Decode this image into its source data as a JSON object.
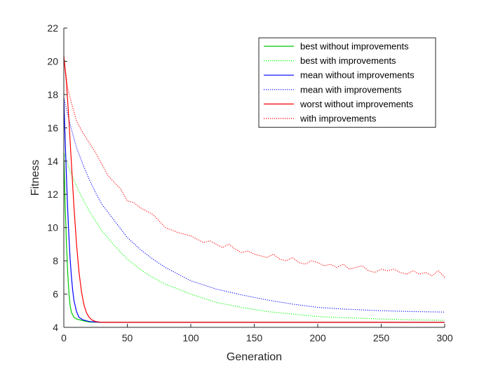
{
  "chart_data": {
    "type": "line",
    "title": "",
    "xlabel": "Generation",
    "ylabel": "Fitness",
    "xlim": [
      0,
      300
    ],
    "ylim": [
      4,
      22
    ],
    "xticks": [
      0,
      50,
      100,
      150,
      200,
      250,
      300
    ],
    "yticks": [
      4,
      6,
      8,
      10,
      12,
      14,
      16,
      18,
      20,
      22
    ],
    "grid": false,
    "legend_position": "top-right",
    "series": [
      {
        "name": "best without improvements",
        "color": "#00c800",
        "style": "solid",
        "points": [
          [
            0,
            14.5
          ],
          [
            1,
            11.5
          ],
          [
            2,
            9.2
          ],
          [
            3,
            7.4
          ],
          [
            4,
            6.1
          ],
          [
            5,
            5.3
          ],
          [
            6,
            4.9
          ],
          [
            8,
            4.6
          ],
          [
            10,
            4.5
          ],
          [
            15,
            4.4
          ],
          [
            20,
            4.32
          ],
          [
            30,
            4.3
          ],
          [
            50,
            4.3
          ],
          [
            100,
            4.3
          ],
          [
            150,
            4.3
          ],
          [
            200,
            4.3
          ],
          [
            250,
            4.3
          ],
          [
            300,
            4.3
          ]
        ]
      },
      {
        "name": "best with improvements",
        "color": "#00ff00",
        "style": "dotted",
        "points": [
          [
            0,
            14.5
          ],
          [
            5,
            13.4
          ],
          [
            10,
            12.5
          ],
          [
            15,
            11.7
          ],
          [
            20,
            11.0
          ],
          [
            25,
            10.4
          ],
          [
            30,
            9.8
          ],
          [
            40,
            8.9
          ],
          [
            50,
            8.1
          ],
          [
            60,
            7.5
          ],
          [
            70,
            7.0
          ],
          [
            80,
            6.6
          ],
          [
            90,
            6.3
          ],
          [
            100,
            6.0
          ],
          [
            120,
            5.5
          ],
          [
            140,
            5.2
          ],
          [
            160,
            4.95
          ],
          [
            180,
            4.8
          ],
          [
            200,
            4.65
          ],
          [
            220,
            4.58
          ],
          [
            250,
            4.5
          ],
          [
            275,
            4.45
          ],
          [
            300,
            4.42
          ]
        ]
      },
      {
        "name": "mean without improvements",
        "color": "#0000ff",
        "style": "solid",
        "points": [
          [
            0,
            17.8
          ],
          [
            1,
            15.4
          ],
          [
            2,
            13.2
          ],
          [
            3,
            11.2
          ],
          [
            4,
            9.5
          ],
          [
            5,
            8.1
          ],
          [
            6,
            7.0
          ],
          [
            7,
            6.2
          ],
          [
            8,
            5.6
          ],
          [
            10,
            4.95
          ],
          [
            12,
            4.6
          ],
          [
            15,
            4.45
          ],
          [
            20,
            4.35
          ],
          [
            25,
            4.32
          ],
          [
            30,
            4.3
          ],
          [
            50,
            4.3
          ],
          [
            100,
            4.3
          ],
          [
            150,
            4.3
          ],
          [
            200,
            4.3
          ],
          [
            250,
            4.3
          ],
          [
            300,
            4.3
          ]
        ]
      },
      {
        "name": "mean with improvements",
        "color": "#0000ff",
        "style": "dotted",
        "points": [
          [
            0,
            17.8
          ],
          [
            5,
            16.2
          ],
          [
            10,
            14.8
          ],
          [
            15,
            13.8
          ],
          [
            20,
            12.9
          ],
          [
            25,
            12.1
          ],
          [
            30,
            11.4
          ],
          [
            40,
            10.4
          ],
          [
            50,
            9.4
          ],
          [
            60,
            8.7
          ],
          [
            70,
            8.1
          ],
          [
            80,
            7.6
          ],
          [
            90,
            7.2
          ],
          [
            100,
            6.8
          ],
          [
            120,
            6.3
          ],
          [
            140,
            5.95
          ],
          [
            160,
            5.65
          ],
          [
            180,
            5.4
          ],
          [
            200,
            5.2
          ],
          [
            220,
            5.1
          ],
          [
            250,
            5.0
          ],
          [
            275,
            4.95
          ],
          [
            300,
            4.92
          ]
        ]
      },
      {
        "name": "worst without improvements",
        "color": "#ff0000",
        "style": "solid",
        "points": [
          [
            0,
            20.3
          ],
          [
            2,
            18.8
          ],
          [
            4,
            16.5
          ],
          [
            6,
            13.8
          ],
          [
            8,
            11.2
          ],
          [
            10,
            9.0
          ],
          [
            12,
            7.3
          ],
          [
            14,
            6.1
          ],
          [
            16,
            5.3
          ],
          [
            18,
            4.85
          ],
          [
            20,
            4.6
          ],
          [
            22,
            4.45
          ],
          [
            25,
            4.35
          ],
          [
            30,
            4.3
          ],
          [
            50,
            4.3
          ],
          [
            100,
            4.3
          ],
          [
            150,
            4.3
          ],
          [
            200,
            4.3
          ],
          [
            250,
            4.3
          ],
          [
            300,
            4.3
          ]
        ]
      },
      {
        "name": "with improvements",
        "color": "#ff0000",
        "style": "dotted",
        "points": [
          [
            0,
            20.3
          ],
          [
            3,
            18.4
          ],
          [
            6,
            17.5
          ],
          [
            10,
            16.4
          ],
          [
            15,
            15.7
          ],
          [
            20,
            15.1
          ],
          [
            25,
            14.5
          ],
          [
            30,
            13.8
          ],
          [
            35,
            13.1
          ],
          [
            40,
            12.7
          ],
          [
            45,
            12.3
          ],
          [
            50,
            11.6
          ],
          [
            55,
            11.5
          ],
          [
            60,
            11.2
          ],
          [
            70,
            10.8
          ],
          [
            75,
            10.4
          ],
          [
            80,
            10.0
          ],
          [
            90,
            9.7
          ],
          [
            100,
            9.5
          ],
          [
            105,
            9.3
          ],
          [
            110,
            9.1
          ],
          [
            115,
            9.2
          ],
          [
            120,
            9.0
          ],
          [
            125,
            8.8
          ],
          [
            130,
            9.0
          ],
          [
            135,
            8.7
          ],
          [
            140,
            8.5
          ],
          [
            145,
            8.6
          ],
          [
            150,
            8.4
          ],
          [
            155,
            8.3
          ],
          [
            160,
            8.2
          ],
          [
            165,
            8.4
          ],
          [
            170,
            8.1
          ],
          [
            175,
            8.0
          ],
          [
            180,
            8.2
          ],
          [
            185,
            7.9
          ],
          [
            190,
            7.8
          ],
          [
            195,
            8.0
          ],
          [
            200,
            7.9
          ],
          [
            205,
            7.7
          ],
          [
            210,
            7.8
          ],
          [
            215,
            7.6
          ],
          [
            220,
            7.8
          ],
          [
            225,
            7.5
          ],
          [
            230,
            7.6
          ],
          [
            235,
            7.7
          ],
          [
            240,
            7.4
          ],
          [
            245,
            7.3
          ],
          [
            250,
            7.5
          ],
          [
            255,
            7.4
          ],
          [
            260,
            7.5
          ],
          [
            265,
            7.3
          ],
          [
            270,
            7.2
          ],
          [
            275,
            7.4
          ],
          [
            280,
            7.2
          ],
          [
            285,
            7.3
          ],
          [
            290,
            7.1
          ],
          [
            295,
            7.4
          ],
          [
            300,
            7.0
          ]
        ]
      }
    ]
  }
}
